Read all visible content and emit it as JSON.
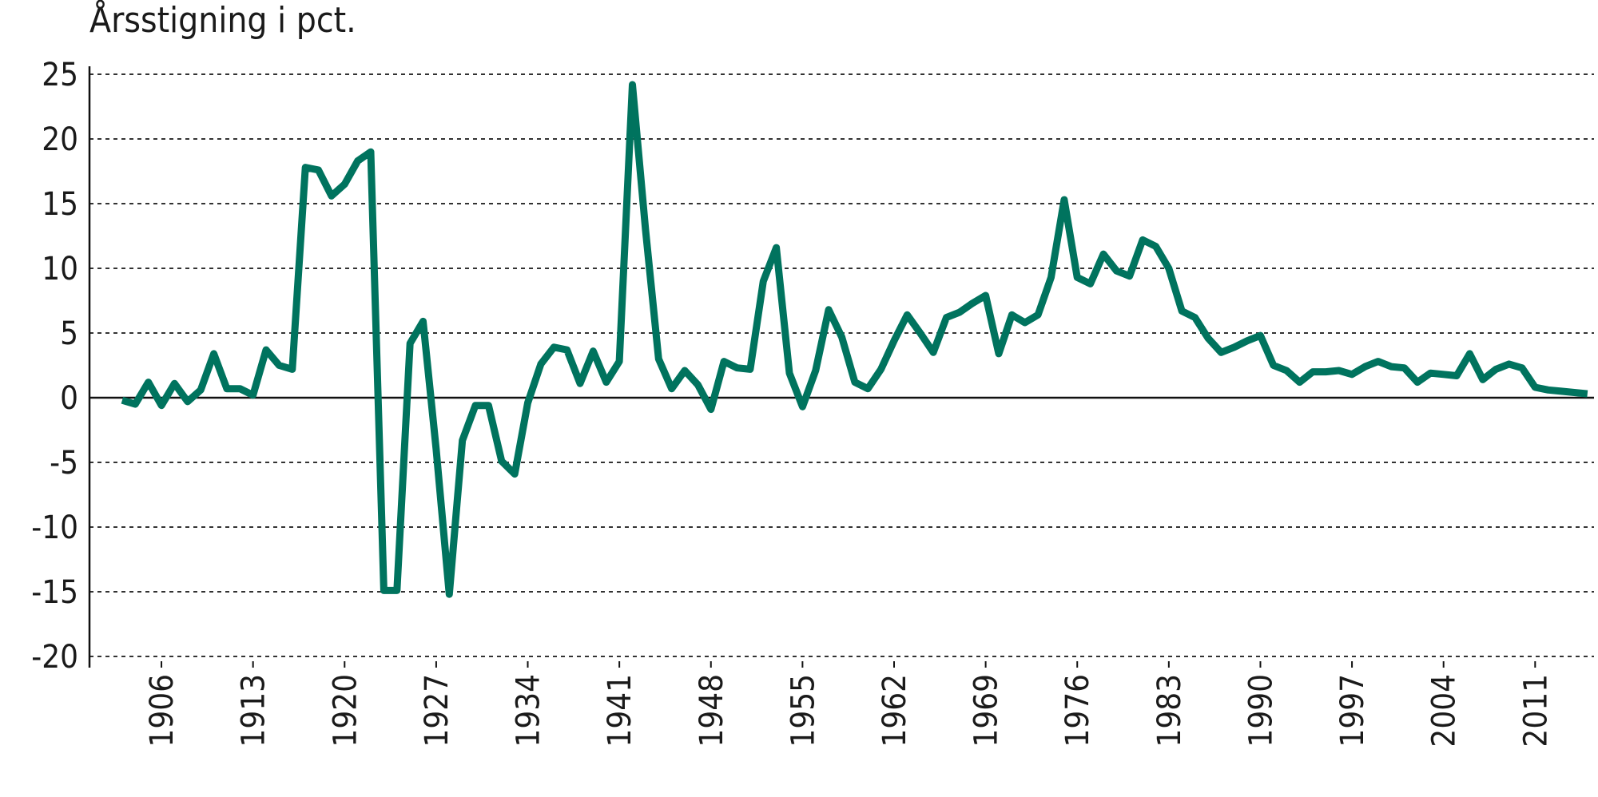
{
  "chart_data": {
    "type": "line",
    "title": "Årsstigning i pct.",
    "x": [
      1903,
      1904,
      1905,
      1906,
      1907,
      1908,
      1909,
      1910,
      1911,
      1912,
      1913,
      1914,
      1915,
      1916,
      1917,
      1918,
      1919,
      1920,
      1921,
      1922,
      1923,
      1924,
      1925,
      1926,
      1927,
      1928,
      1929,
      1930,
      1931,
      1932,
      1933,
      1934,
      1935,
      1936,
      1937,
      1938,
      1939,
      1940,
      1941,
      1942,
      1943,
      1944,
      1945,
      1946,
      1947,
      1948,
      1949,
      1950,
      1951,
      1952,
      1953,
      1954,
      1955,
      1956,
      1957,
      1958,
      1959,
      1960,
      1961,
      1962,
      1963,
      1964,
      1965,
      1966,
      1967,
      1968,
      1969,
      1970,
      1971,
      1972,
      1973,
      1974,
      1975,
      1976,
      1977,
      1978,
      1979,
      1980,
      1981,
      1982,
      1983,
      1984,
      1985,
      1986,
      1987,
      1988,
      1989,
      1990,
      1991,
      1992,
      1993,
      1994,
      1995,
      1996,
      1997,
      1998,
      1999,
      2000,
      2001,
      2002,
      2003,
      2004,
      2005,
      2006,
      2007,
      2008,
      2009,
      2010,
      2011,
      2012,
      2013,
      2014,
      2015
    ],
    "series": [
      {
        "color": "#00735e",
        "values": [
          -0.2,
          -0.5,
          1.2,
          -0.6,
          1.1,
          -0.3,
          0.6,
          3.4,
          0.7,
          0.7,
          0.2,
          3.7,
          2.5,
          2.2,
          17.8,
          17.6,
          15.6,
          16.5,
          18.3,
          19.0,
          -14.9,
          -14.9,
          4.2,
          5.9,
          -4,
          -15.2,
          -3.3,
          -0.6,
          -0.6,
          -4.9,
          -5.9,
          -0.4,
          2.6,
          3.9,
          3.7,
          1.1,
          3.6,
          1.2,
          2.8,
          24.2,
          13,
          3.0,
          0.7,
          2.1,
          1.0,
          -0.9,
          2.8,
          2.3,
          2.2,
          9.0,
          11.6,
          1.9,
          -0.7,
          2.1,
          6.8,
          4.7,
          1.2,
          0.7,
          2.2,
          4.4,
          6.4,
          5.0,
          3.5,
          6.2,
          6.6,
          7.3,
          7.9,
          3.4,
          6.4,
          5.8,
          6.4,
          9.3,
          15.3,
          9.3,
          8.8,
          11.1,
          9.8,
          9.4,
          12.2,
          11.7,
          10.0,
          6.7,
          6.2,
          4.6,
          3.5,
          3.9,
          4.4,
          4.8,
          2.5,
          2.1,
          1.2,
          2.0,
          2.0,
          2.1,
          1.8,
          2.4,
          2.8,
          2.4,
          2.3,
          1.2,
          1.9,
          1.8,
          1.7,
          3.4,
          1.4,
          2.2,
          2.6,
          2.3,
          0.8,
          0.6,
          0.5,
          0.4,
          0.3
        ]
      }
    ],
    "xlim": [
      1900.5,
      2015.5
    ],
    "xticks": [
      1906,
      1913,
      1920,
      1927,
      1934,
      1941,
      1948,
      1955,
      1962,
      1969,
      1976,
      1983,
      1990,
      1997,
      2004,
      2011
    ],
    "ylim": [
      -20,
      25
    ],
    "yticks": [
      -20,
      -15,
      -10,
      -5,
      0,
      5,
      10,
      15,
      20,
      25
    ],
    "grid": true
  }
}
